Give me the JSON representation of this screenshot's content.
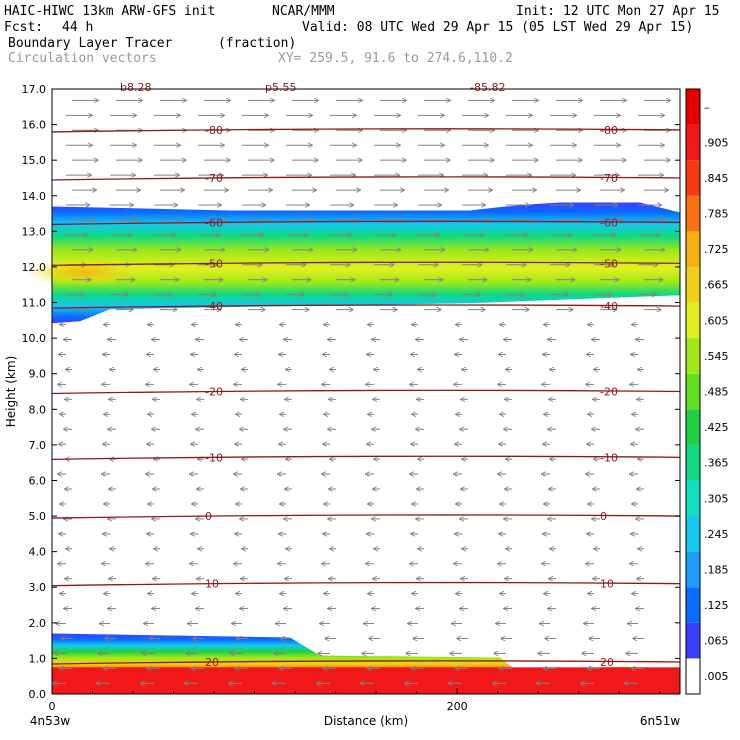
{
  "header": {
    "model": "HAIC-HIWC 13km ARW-GFS init",
    "org": "NCAR/MMM",
    "init": "Init: 12 UTC Mon 27 Apr 15",
    "fcst_label": "Fcst:",
    "fcst_value": "44 h",
    "valid": "Valid: 08 UTC Wed 29 Apr 15 (05 LST Wed 29 Apr 15)",
    "field": "Boundary Layer Tracer",
    "unit": "(fraction)",
    "vectors": "Circulation vectors",
    "xy": "XY= 259.5, 91.6 to 274.6,110.2"
  },
  "chart_data": {
    "type": "heatmap",
    "title": "Boundary Layer Tracer",
    "ylabel": "Height (km)",
    "xlabel": "Distance (km)",
    "ylim": [
      0,
      17
    ],
    "xlim": [
      0,
      310
    ],
    "y_ticks": [
      "0.0",
      "1.0",
      "2.0",
      "3.0",
      "4.0",
      "5.0",
      "6.0",
      "7.0",
      "8.0",
      "9.0",
      "10.0",
      "11.0",
      "12.0",
      "13.0",
      "14.0",
      "15.0",
      "16.0",
      "17.0"
    ],
    "x_ticks": [
      {
        "value": 0,
        "label": "0"
      },
      {
        "value": 200,
        "label": "200"
      }
    ],
    "endpoints": {
      "left": "4n53w",
      "right": "6n51w"
    },
    "colorbar": {
      "labels": [
        ".005",
        ".065",
        ".125",
        ".185",
        ".245",
        ".305",
        ".365",
        ".425",
        ".485",
        ".545",
        ".605",
        ".665",
        ".725",
        ".785",
        ".845",
        ".905",
        "–"
      ],
      "colors": [
        "#ffffff",
        "#3c3cff",
        "#0a6cff",
        "#1c9dff",
        "#14c8f0",
        "#10e0c0",
        "#10d880",
        "#20d040",
        "#60e020",
        "#a0e818",
        "#e0f020",
        "#f0d018",
        "#f8b010",
        "#f87010",
        "#f83a10",
        "#f01818",
        "#e80000"
      ]
    },
    "temperature_contours": [
      {
        "label": "-80",
        "height": 15.85
      },
      {
        "label": "-70",
        "height": 14.5
      },
      {
        "label": "-60",
        "height": 13.25
      },
      {
        "label": "-50",
        "height": 12.1
      },
      {
        "label": "-40",
        "height": 10.9
      },
      {
        "label": "-20",
        "height": 8.5
      },
      {
        "label": "-10",
        "height": 6.65
      },
      {
        "label": "0",
        "height": 5.0
      },
      {
        "label": "10",
        "height": 3.1
      },
      {
        "label": "20",
        "height": 0.9
      }
    ],
    "top_cut_labels": [
      "b8.28",
      "p5.55",
      "-85.82"
    ],
    "tracer_layers": [
      {
        "name": "upper layer",
        "bottom_km": 10.7,
        "top_km": 13.7,
        "max_fraction": 0.665
      },
      {
        "name": "boundary layer",
        "bottom_km": 0.0,
        "top_km": 1.7,
        "max_fraction": 0.905
      }
    ],
    "circulation_vectors": {
      "upper_direction": "east (above ~10.5 km)",
      "lower_direction": "west (below ~10.5 km)"
    }
  }
}
